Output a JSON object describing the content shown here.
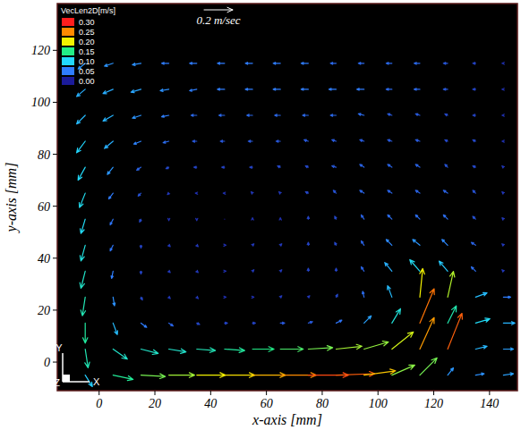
{
  "chart_data": {
    "type": "quiver",
    "xlabel": "x-axis [mm]",
    "ylabel": "y-axis [mm]",
    "xlim": [
      -15,
      150
    ],
    "ylim": [
      -11,
      138
    ],
    "xticks": [
      0,
      20,
      40,
      60,
      80,
      100,
      120,
      140
    ],
    "yticks": [
      0,
      20,
      40,
      60,
      80,
      100,
      120
    ],
    "grid": false,
    "reference_vector": {
      "value": 0.2,
      "label": "0.2 m/sec"
    },
    "colorbar": {
      "title": "VecLen2D[m/s]",
      "ticks": [
        {
          "value": 0.3,
          "label": "0.30"
        },
        0.25,
        {
          "value": 0.2,
          "label": "0.20"
        },
        0.15,
        {
          "value": 0.1,
          "label": "0.10"
        },
        0.05,
        {
          "value": 0,
          "label": "0.00"
        }
      ],
      "colors": [
        "#ff1e1e",
        "#ff8a00",
        "#f2f200",
        "#22ee88",
        "#22d8ff",
        "#2f7dff",
        "#1b1b9a"
      ]
    },
    "annotations": [
      {
        "text": "Y"
      },
      {
        "text": "X"
      },
      {
        "text": "Z"
      }
    ],
    "x": [
      -5,
      5,
      15,
      25,
      35,
      45,
      55,
      65,
      75,
      85,
      95,
      105,
      115,
      125,
      135,
      145
    ],
    "y": [
      -5,
      5,
      15,
      25,
      35,
      45,
      55,
      65,
      75,
      85,
      95,
      105,
      115
    ],
    "u": [
      [
        0.05,
        0.14,
        0.17,
        0.18,
        0.2,
        0.21,
        0.23,
        0.25,
        0.28,
        0.27,
        0.22,
        0.16,
        0.12,
        0.04,
        0.06,
        0.07
      ],
      [
        0.02,
        0.1,
        0.12,
        0.12,
        0.13,
        0.14,
        0.15,
        0.16,
        0.17,
        0.18,
        0.17,
        0.15,
        0.1,
        0.1,
        0.08,
        0.07
      ],
      [
        0,
        0.03,
        0.04,
        0.03,
        0.02,
        0.02,
        0.02,
        0.03,
        0.03,
        0.04,
        0.05,
        0.06,
        0.1,
        0.06,
        0.1,
        0.08
      ],
      [
        -0.02,
        0.01,
        0.01,
        0.01,
        0.01,
        0.01,
        0.01,
        0.01,
        0.01,
        0.01,
        -0.01,
        -0.03,
        0.02,
        0.04,
        0.08,
        0.05
      ],
      [
        -0.03,
        -0.01,
        0,
        0.01,
        0.01,
        0.01,
        0.01,
        0.01,
        0,
        0,
        -0.02,
        -0.05,
        -0.07,
        -0.06,
        -0.03,
        -0.01
      ],
      [
        -0.03,
        -0.02,
        0,
        0.01,
        0.01,
        0.01,
        0.01,
        0.01,
        0,
        -0.01,
        -0.02,
        -0.04,
        -0.05,
        -0.04,
        -0.03,
        -0.01
      ],
      [
        -0.03,
        -0.02,
        -0.01,
        0,
        0,
        0,
        0,
        0,
        0,
        -0.01,
        -0.02,
        -0.03,
        -0.03,
        -0.03,
        -0.02,
        -0.01
      ],
      [
        -0.04,
        -0.03,
        -0.02,
        -0.01,
        -0.01,
        -0.01,
        -0.01,
        -0.01,
        -0.02,
        -0.02,
        -0.03,
        -0.03,
        -0.03,
        -0.03,
        -0.02,
        -0.01
      ],
      [
        -0.05,
        -0.04,
        -0.03,
        -0.02,
        -0.02,
        -0.02,
        -0.02,
        -0.02,
        -0.02,
        -0.03,
        -0.03,
        -0.03,
        -0.03,
        -0.02,
        -0.02,
        -0.01
      ],
      [
        -0.06,
        -0.06,
        -0.05,
        -0.04,
        -0.03,
        -0.03,
        -0.03,
        -0.03,
        -0.03,
        -0.03,
        -0.03,
        -0.03,
        -0.03,
        -0.02,
        -0.02,
        -0.01
      ],
      [
        -0.06,
        -0.07,
        -0.06,
        -0.05,
        -0.04,
        -0.04,
        -0.04,
        -0.04,
        -0.04,
        -0.04,
        -0.04,
        -0.03,
        -0.03,
        -0.02,
        -0.02,
        -0.01
      ],
      [
        -0.06,
        -0.07,
        -0.07,
        -0.06,
        -0.05,
        -0.05,
        -0.05,
        -0.05,
        -0.05,
        -0.05,
        -0.05,
        -0.04,
        -0.04,
        -0.03,
        -0.02,
        -0.01
      ],
      [
        -0.05,
        -0.06,
        -0.06,
        -0.05,
        -0.05,
        -0.05,
        -0.05,
        -0.05,
        -0.05,
        -0.04,
        -0.04,
        -0.04,
        -0.04,
        -0.03,
        -0.02,
        -0.01
      ]
    ],
    "v": [
      [
        -0.08,
        -0.03,
        -0.01,
        0,
        0,
        0,
        0,
        0,
        0,
        0.01,
        0.03,
        0.07,
        0.12,
        0.05,
        0.01,
        0.01
      ],
      [
        -0.13,
        -0.07,
        -0.03,
        -0.02,
        -0.01,
        -0.01,
        0,
        0,
        0.01,
        0.02,
        0.05,
        0.12,
        0.22,
        0.25,
        0.02,
        0
      ],
      [
        -0.14,
        -0.08,
        -0.03,
        -0.02,
        -0.01,
        0,
        0,
        0,
        0.01,
        0.02,
        0.05,
        0.1,
        0.24,
        0.12,
        0.03,
        0
      ],
      [
        -0.13,
        -0.06,
        -0.02,
        -0.01,
        -0.01,
        0,
        0,
        0.01,
        0.01,
        0.02,
        0.04,
        0.08,
        0.2,
        0.18,
        0.03,
        0
      ],
      [
        -0.12,
        -0.05,
        -0.02,
        -0.01,
        -0.01,
        0,
        0.01,
        0.01,
        0.02,
        0.02,
        0.03,
        0.06,
        0.08,
        0.07,
        0.03,
        0.01
      ],
      [
        -0.11,
        -0.04,
        -0.02,
        -0.01,
        -0.01,
        0,
        0.01,
        0.01,
        0.02,
        0.02,
        0.03,
        0.04,
        0.04,
        0.04,
        0.02,
        0.01
      ],
      [
        -0.1,
        -0.04,
        -0.02,
        -0.01,
        -0.01,
        0,
        0.01,
        0.01,
        0.02,
        0.02,
        0.03,
        0.03,
        0.03,
        0.03,
        0.02,
        0.01
      ],
      [
        -0.1,
        -0.04,
        -0.02,
        -0.01,
        0,
        0,
        0.01,
        0.01,
        0.01,
        0.02,
        0.02,
        0.02,
        0.02,
        0.02,
        0.02,
        0.01
      ],
      [
        -0.09,
        -0.05,
        -0.02,
        -0.01,
        0,
        0,
        0,
        0.01,
        0.01,
        0.01,
        0.02,
        0.02,
        0.02,
        0.02,
        0.01,
        0.01
      ],
      [
        -0.08,
        -0.05,
        -0.02,
        -0.01,
        0,
        0,
        0,
        0,
        0.01,
        0.01,
        0.01,
        0.01,
        0.01,
        0.01,
        0.01,
        0
      ],
      [
        -0.06,
        -0.04,
        -0.02,
        -0.01,
        0,
        0,
        0,
        0,
        0,
        0,
        0.01,
        0.01,
        0.01,
        0.01,
        0,
        0
      ],
      [
        -0.05,
        -0.03,
        -0.02,
        -0.01,
        -0.01,
        0,
        0,
        0,
        0,
        0,
        0,
        0,
        0,
        0,
        0,
        0
      ],
      [
        -0.04,
        -0.02,
        -0.01,
        0,
        0,
        0,
        0,
        0,
        0,
        0,
        0,
        0,
        0,
        0,
        0,
        0
      ]
    ]
  }
}
